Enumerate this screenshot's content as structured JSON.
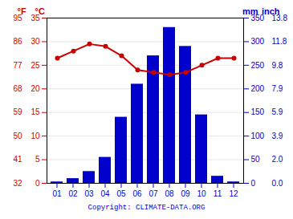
{
  "chart_data": {
    "type": "bar",
    "categories": [
      "01",
      "02",
      "03",
      "04",
      "05",
      "06",
      "07",
      "08",
      "09",
      "10",
      "11",
      "12"
    ],
    "series": [
      {
        "type": "bar",
        "axis": "y2",
        "color": "#0000cc",
        "values": [
          3,
          10,
          25,
          55,
          140,
          210,
          270,
          330,
          290,
          145,
          15,
          3
        ]
      },
      {
        "type": "line",
        "axis": "y",
        "color": "#cc0000",
        "marker": "circle",
        "values": [
          26.5,
          28.0,
          29.5,
          29.0,
          27.0,
          24.0,
          23.5,
          23.0,
          23.5,
          25.0,
          26.5,
          26.5
        ]
      }
    ],
    "ylim": [
      0,
      35
    ],
    "yticks": [
      0,
      5,
      10,
      15,
      20,
      25,
      30,
      35
    ],
    "ylabel": "°C",
    "y2lim": [
      0,
      350
    ],
    "y2ticks": [
      0,
      50,
      100,
      150,
      200,
      250,
      300,
      350
    ],
    "y2label": "mm",
    "y3lim": [
      32,
      95
    ],
    "y3ticks": [
      32,
      41,
      50,
      59,
      68,
      77,
      86,
      95
    ],
    "y3label": "°F",
    "y4lim": [
      0,
      13.7795
    ],
    "y4ticks": [
      {
        "value": 0,
        "label": "0.0"
      },
      {
        "value": 1.9685,
        "label": "2.0"
      },
      {
        "value": 3.937,
        "label": "3.9"
      },
      {
        "value": 5.9055,
        "label": "5.9"
      },
      {
        "value": 7.874,
        "label": "7.9"
      },
      {
        "value": 9.8425,
        "label": "9.8"
      },
      {
        "value": 11.811,
        "label": "11.8"
      },
      {
        "value": 13.7795,
        "label": "13.8"
      }
    ],
    "y4label": "inch",
    "grid": true,
    "annotations": [
      {
        "text": "Copyright: CLIMATE-DATA.ORG",
        "color": "#0000cc"
      }
    ]
  }
}
